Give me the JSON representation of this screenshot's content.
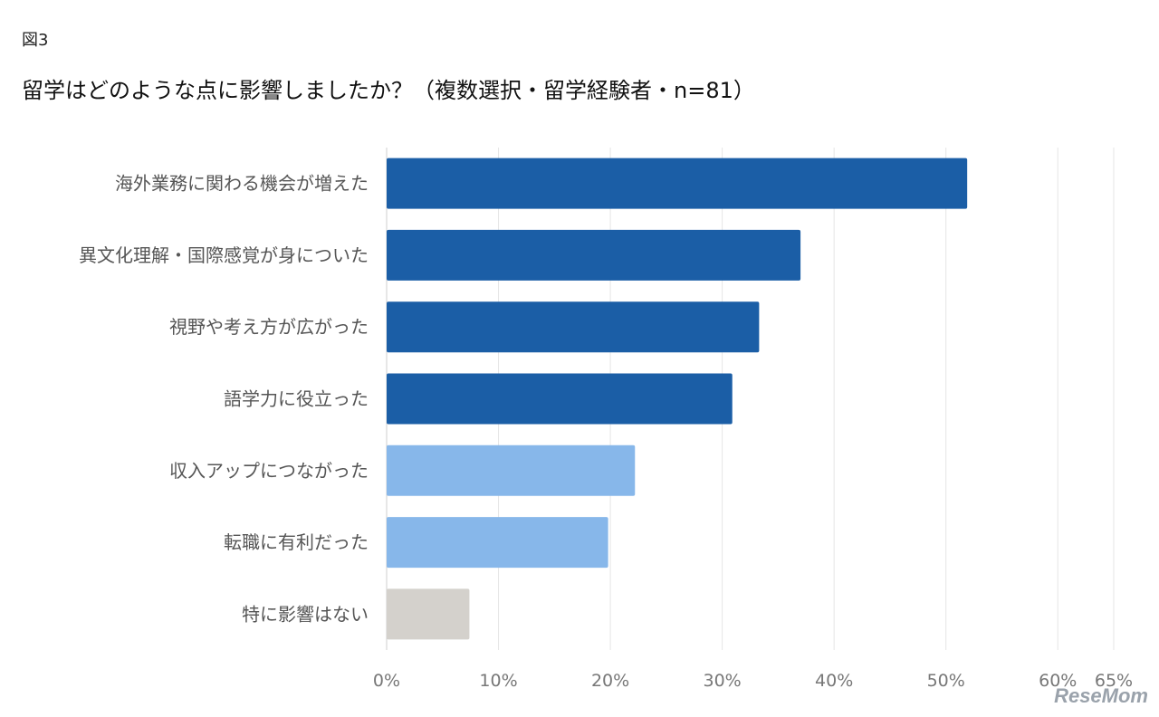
{
  "figure_label": "図3",
  "chart_data": {
    "type": "bar",
    "orientation": "horizontal",
    "title": "留学はどのような点に影響しましたか？（複数選択・留学経験者・n=81）",
    "categories": [
      "海外業務に関わる機会が増えた",
      "異文化理解・国際感覚が身についた",
      "視野や考え方が広がった",
      "語学力に役立った",
      "収入アップにつながった",
      "転職に有利だった",
      "特に影響はない"
    ],
    "values": [
      51.9,
      37.0,
      33.3,
      30.9,
      22.2,
      19.8,
      7.4
    ],
    "bar_colors": [
      "#1b5ea6",
      "#1b5ea6",
      "#1b5ea6",
      "#1b5ea6",
      "#87b7ea",
      "#87b7ea",
      "#d4d1cc"
    ],
    "xlim": [
      0,
      65
    ],
    "xticks": [
      0,
      10,
      20,
      30,
      40,
      50,
      60,
      65
    ],
    "xtick_labels": [
      "0%",
      "10%",
      "20%",
      "30%",
      "40%",
      "50%",
      "60%",
      "65%"
    ],
    "grid": true,
    "xlabel": "",
    "ylabel": ""
  },
  "watermark": "ReseMom"
}
